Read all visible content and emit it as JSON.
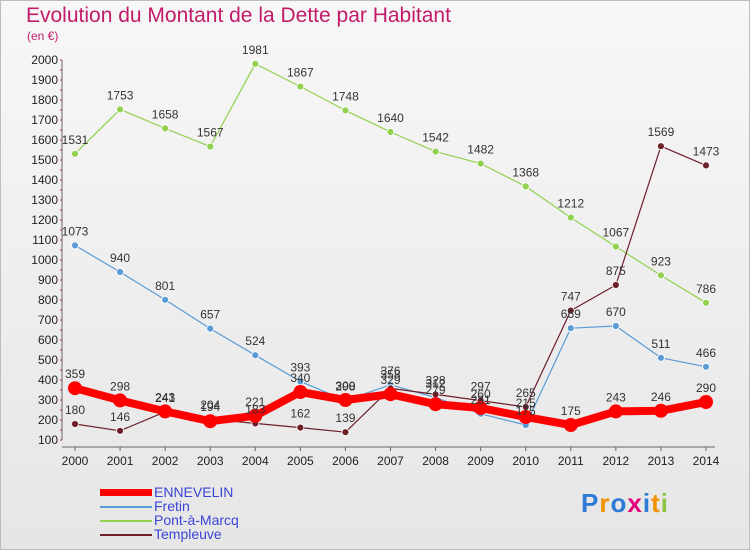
{
  "chart_data": {
    "type": "line",
    "title": "Evolution du Montant de la Dette par Habitant",
    "subtitle": "(en €)",
    "xlabel": "",
    "ylabel": "",
    "ylim": [
      100,
      2000
    ],
    "yticks": [
      100,
      200,
      300,
      400,
      500,
      600,
      700,
      800,
      900,
      1000,
      1100,
      1200,
      1300,
      1400,
      1500,
      1600,
      1700,
      1800,
      1900,
      2000
    ],
    "categories": [
      "2000",
      "2001",
      "2002",
      "2003",
      "2004",
      "2005",
      "2006",
      "2007",
      "2008",
      "2009",
      "2010",
      "2011",
      "2012",
      "2013",
      "2014"
    ],
    "series": [
      {
        "name": "ENNEVELIN",
        "color": "#ff0000",
        "values": [
          359,
          298,
          243,
          194,
          221,
          340,
          300,
          329,
          279,
          260,
          215,
          175,
          243,
          246,
          290
        ]
      },
      {
        "name": "Fretin",
        "color": "#5a9bd5",
        "values": [
          1073,
          940,
          801,
          657,
          524,
          393,
          298,
          376,
          312,
          231,
          175,
          659,
          670,
          511,
          466
        ]
      },
      {
        "name": "Pont-à-Marcq",
        "color": "#92d050",
        "values": [
          1531,
          1753,
          1658,
          1567,
          1981,
          1867,
          1748,
          1640,
          1542,
          1482,
          1368,
          1212,
          1067,
          923,
          786
        ]
      },
      {
        "name": "Templeuve",
        "color": "#6d1f2a",
        "values": [
          180,
          146,
          241,
          204,
          183,
          162,
          139,
          358,
          328,
          297,
          265,
          747,
          875,
          1569,
          1473
        ]
      }
    ],
    "labels": {
      "ENNEVELIN": [
        "359",
        "298",
        "243",
        "194",
        "221",
        "340",
        "300",
        "329",
        "279",
        "260",
        "215",
        "175",
        "243",
        "246",
        "290"
      ],
      "Fretin": [
        "1073",
        "940",
        "801",
        "657",
        "524",
        "393",
        "298",
        "376",
        "312",
        "231",
        "175",
        "659",
        "670",
        "511",
        "466"
      ],
      "Pont-à-Marcq": [
        "1531",
        "1753",
        "1658",
        "1567",
        "1981",
        "1867",
        "1748",
        "1640",
        "1542",
        "1482",
        "1368",
        "1212",
        "1067",
        "923",
        "786"
      ],
      "Templeuve": [
        "180",
        "146",
        "241",
        "204",
        "183",
        "162",
        "139",
        "358",
        "328",
        "297",
        "265",
        "747",
        "875",
        "1569",
        "1473"
      ]
    },
    "grid": false,
    "legend_position": "bottom-left"
  },
  "logo": {
    "letters": [
      "P",
      "r",
      "o",
      "x",
      "i",
      "t",
      "i"
    ],
    "colors": [
      "#2e7bd6",
      "#f39200",
      "#2e7bd6",
      "#e4007d",
      "#2e7bd6",
      "#f39200",
      "#8bc53f"
    ]
  }
}
